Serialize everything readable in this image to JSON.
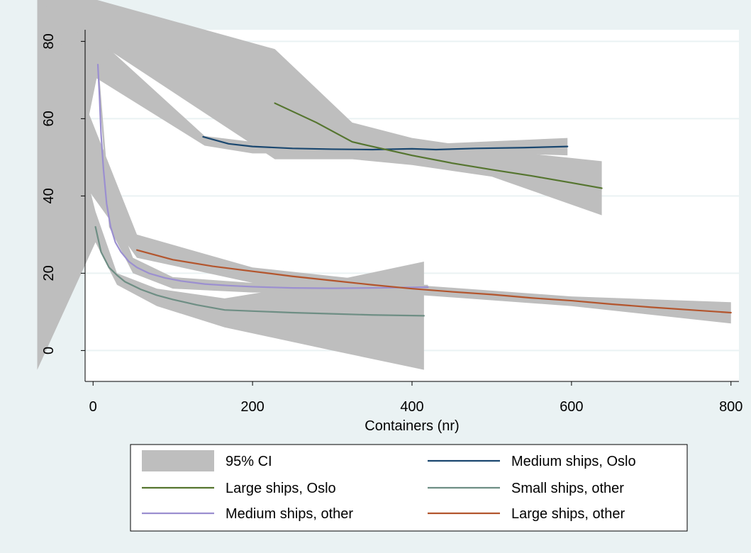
{
  "chart_data": {
    "type": "line",
    "title": "",
    "xlabel": "Containers (nr)",
    "ylabel": "",
    "xlim": [
      -10,
      810
    ],
    "ylim": [
      -8,
      83
    ],
    "xticks": [
      0,
      200,
      400,
      600,
      800
    ],
    "yticks": [
      0,
      20,
      40,
      60,
      80
    ],
    "grid": "horizontal",
    "legend_position": "bottom",
    "legend": [
      {
        "label": "95% CI",
        "kind": "area",
        "color": "#bebebe"
      },
      {
        "label": "Medium ships, Oslo",
        "kind": "line",
        "color": "#1a476f"
      },
      {
        "label": "Large ships, Oslo",
        "kind": "line",
        "color": "#55752f"
      },
      {
        "label": "Small ships, other",
        "kind": "line",
        "color": "#6e8e84"
      },
      {
        "label": "Medium ships, other",
        "kind": "line",
        "color": "#9b8fd0"
      },
      {
        "label": "Large ships, other",
        "kind": "line",
        "color": "#b3552d"
      }
    ],
    "ci_bands": [
      {
        "series": "Medium ships, Oslo",
        "x": [
          -70,
          140,
          200,
          300,
          430,
          595
        ],
        "upper": [
          95,
          55.5,
          54,
          53.5,
          53.5,
          55
        ],
        "lower": [
          80,
          53,
          51,
          51,
          51.5,
          50.5
        ]
      },
      {
        "series": "Large ships, Oslo",
        "x": [
          -70,
          228,
          325,
          400,
          500,
          638
        ],
        "upper": [
          95,
          78,
          59,
          55,
          52,
          49
        ],
        "lower": [
          90,
          49.5,
          49.5,
          48,
          45,
          35
        ]
      },
      {
        "series": "Small ships, other",
        "x": [
          -70,
          3,
          30,
          80,
          165,
          300,
          415
        ],
        "upper": [
          95,
          36,
          20,
          16,
          13.5,
          18,
          23
        ],
        "lower": [
          -5,
          28,
          17,
          11.5,
          6,
          0,
          -5
        ]
      },
      {
        "series": "Medium ships, other",
        "x": [
          -70,
          6,
          20,
          50,
          100,
          200,
          300,
          420
        ],
        "upper": [
          95,
          76,
          40,
          24,
          19,
          17.5,
          17.2,
          17
        ],
        "lower": [
          -5,
          72,
          32,
          20,
          16,
          15,
          15,
          15
        ]
      },
      {
        "series": "Large ships, other",
        "x": [
          -70,
          55,
          200,
          400,
          600,
          800
        ],
        "upper": [
          95,
          30,
          21.5,
          17,
          14,
          12.5
        ],
        "lower": [
          60,
          24,
          17.5,
          14.5,
          11.5,
          7
        ]
      }
    ],
    "series": [
      {
        "name": "Medium ships, Oslo",
        "color": "#1a476f",
        "x": [
          138,
          170,
          200,
          250,
          300,
          350,
          400,
          430,
          480,
          540,
          595
        ],
        "y": [
          55.3,
          53.5,
          52.8,
          52.3,
          52.1,
          52.0,
          52.2,
          52.0,
          52.3,
          52.5,
          52.8
        ]
      },
      {
        "name": "Large ships, Oslo",
        "color": "#55752f",
        "x": [
          228,
          280,
          325,
          350,
          400,
          450,
          500,
          550,
          600,
          638
        ],
        "y": [
          64,
          59,
          54,
          52.8,
          50.5,
          48.5,
          46.8,
          45.2,
          43.4,
          42
        ]
      },
      {
        "name": "Small ships, other",
        "color": "#6e8e84",
        "x": [
          3,
          10,
          20,
          30,
          40,
          60,
          80,
          100,
          130,
          165,
          200,
          250,
          300,
          350,
          415
        ],
        "y": [
          32,
          25.5,
          21.5,
          19.5,
          17.8,
          15.8,
          14.3,
          13.2,
          11.8,
          10.5,
          10.2,
          9.8,
          9.5,
          9.2,
          9.0
        ]
      },
      {
        "name": "Medium ships, other",
        "color": "#9b8fd0",
        "x": [
          6,
          8,
          10,
          13,
          17,
          22,
          28,
          35,
          45,
          55,
          70,
          90,
          110,
          140,
          170,
          200,
          250,
          300,
          350,
          420
        ],
        "y": [
          74,
          66,
          56,
          47,
          38,
          32,
          28,
          25.5,
          23,
          21.5,
          20,
          18.8,
          18,
          17.2,
          16.8,
          16.5,
          16.2,
          16.1,
          16.2,
          16.4
        ]
      },
      {
        "name": "Large ships, other",
        "color": "#b3552d",
        "x": [
          55,
          100,
          150,
          200,
          250,
          300,
          350,
          400,
          450,
          500,
          550,
          600,
          650,
          700,
          750,
          800
        ],
        "y": [
          26,
          23.5,
          21.8,
          20.5,
          19.2,
          18.1,
          17,
          16,
          15.2,
          14.5,
          13.6,
          12.9,
          12,
          11.2,
          10.5,
          9.8
        ]
      }
    ]
  }
}
